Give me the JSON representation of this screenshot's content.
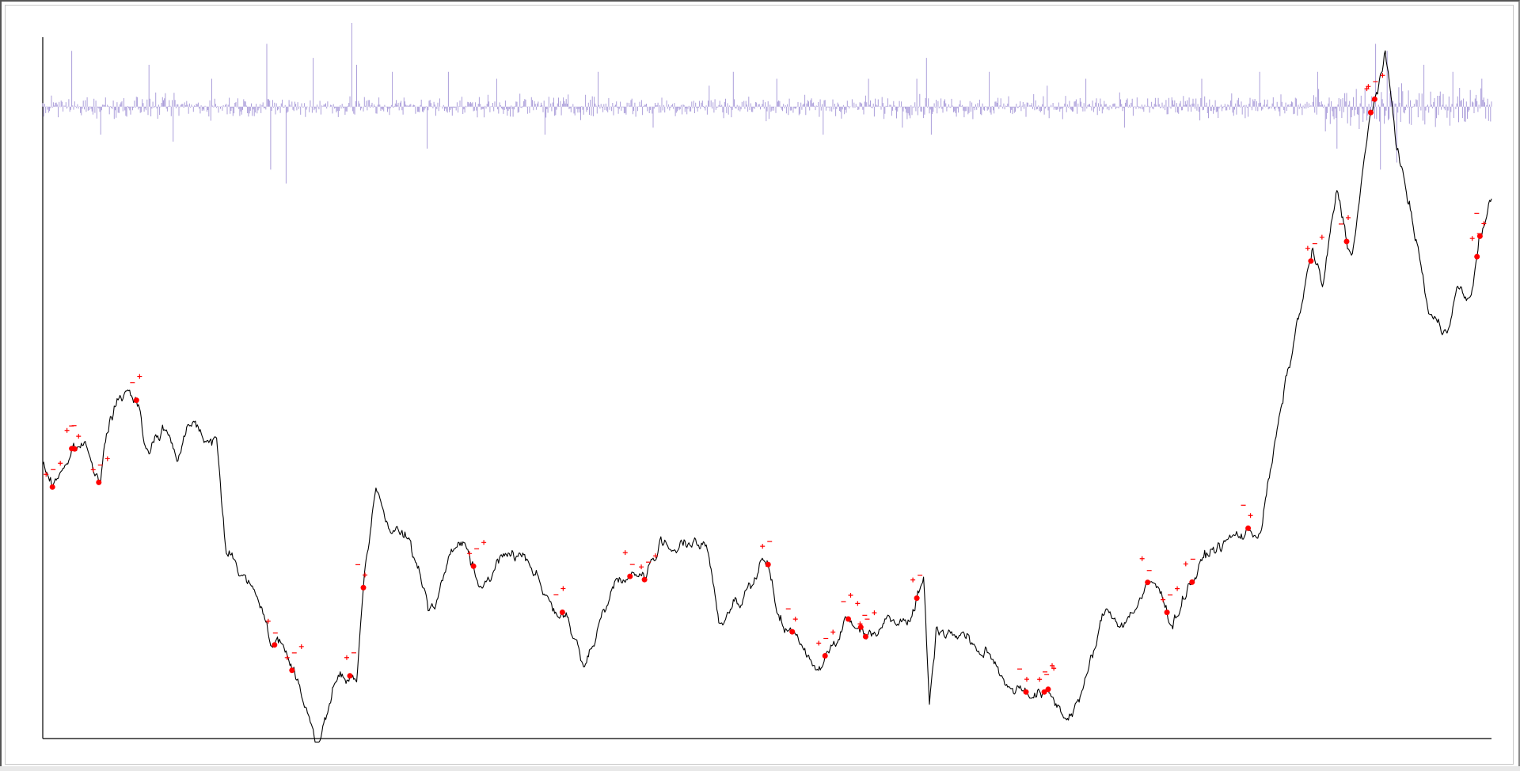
{
  "chart_data": {
    "type": "line",
    "title": "",
    "xlabel": "",
    "ylabel": "",
    "grid": false,
    "legend": "none",
    "x_range": [
      0,
      1500
    ],
    "y_range": [
      0,
      100
    ],
    "series": [
      {
        "role": "price",
        "color": "#000000",
        "anchors": [
          [
            0,
            39
          ],
          [
            10,
            36
          ],
          [
            20,
            39
          ],
          [
            30,
            41
          ],
          [
            45,
            42
          ],
          [
            60,
            38
          ],
          [
            70,
            46
          ],
          [
            80,
            49
          ],
          [
            100,
            48
          ],
          [
            110,
            41
          ],
          [
            125,
            45
          ],
          [
            140,
            41
          ],
          [
            155,
            47
          ],
          [
            165,
            45
          ],
          [
            180,
            42
          ],
          [
            190,
            27
          ],
          [
            210,
            23
          ],
          [
            230,
            17
          ],
          [
            240,
            14
          ],
          [
            260,
            10
          ],
          [
            285,
            0
          ],
          [
            305,
            8
          ],
          [
            325,
            8
          ],
          [
            330,
            18
          ],
          [
            345,
            35
          ],
          [
            360,
            30
          ],
          [
            380,
            28
          ],
          [
            400,
            18
          ],
          [
            420,
            26
          ],
          [
            440,
            28
          ],
          [
            455,
            20
          ],
          [
            470,
            25
          ],
          [
            490,
            27
          ],
          [
            505,
            26
          ],
          [
            525,
            20
          ],
          [
            545,
            16
          ],
          [
            560,
            9
          ],
          [
            575,
            17
          ],
          [
            590,
            22
          ],
          [
            610,
            24
          ],
          [
            620,
            23
          ],
          [
            645,
            28
          ],
          [
            665,
            28
          ],
          [
            690,
            26
          ],
          [
            700,
            16
          ],
          [
            715,
            20
          ],
          [
            735,
            23
          ],
          [
            750,
            25
          ],
          [
            760,
            18
          ],
          [
            790,
            12
          ],
          [
            805,
            11
          ],
          [
            830,
            17
          ],
          [
            850,
            15
          ],
          [
            870,
            17
          ],
          [
            900,
            19
          ],
          [
            912,
            23
          ],
          [
            918,
            5
          ],
          [
            925,
            16
          ],
          [
            950,
            15
          ],
          [
            975,
            12
          ],
          [
            1000,
            8
          ],
          [
            1030,
            7
          ],
          [
            1040,
            6
          ],
          [
            1060,
            3
          ],
          [
            1080,
            8
          ],
          [
            1100,
            18
          ],
          [
            1120,
            17
          ],
          [
            1135,
            20
          ],
          [
            1150,
            22
          ],
          [
            1170,
            17
          ],
          [
            1185,
            22
          ],
          [
            1210,
            27
          ],
          [
            1240,
            29
          ],
          [
            1260,
            30
          ],
          [
            1280,
            45
          ],
          [
            1300,
            60
          ],
          [
            1315,
            70
          ],
          [
            1325,
            64
          ],
          [
            1340,
            78
          ],
          [
            1355,
            69
          ],
          [
            1375,
            89
          ],
          [
            1385,
            95
          ],
          [
            1390,
            97
          ],
          [
            1400,
            87
          ],
          [
            1412,
            78
          ],
          [
            1425,
            69
          ],
          [
            1435,
            61
          ],
          [
            1450,
            58
          ],
          [
            1465,
            65
          ],
          [
            1478,
            62
          ],
          [
            1488,
            72
          ],
          [
            1500,
            77
          ]
        ]
      },
      {
        "role": "returns",
        "color": "#a89ad8",
        "baseline": 90.5,
        "spikes": [
          [
            30,
            8
          ],
          [
            60,
            -4
          ],
          [
            110,
            6
          ],
          [
            135,
            -5
          ],
          [
            175,
            4
          ],
          [
            232,
            9
          ],
          [
            236,
            -9
          ],
          [
            252,
            -11
          ],
          [
            280,
            7
          ],
          [
            320,
            12
          ],
          [
            325,
            6
          ],
          [
            362,
            5
          ],
          [
            398,
            -6
          ],
          [
            420,
            5
          ],
          [
            470,
            4
          ],
          [
            520,
            -4
          ],
          [
            575,
            5
          ],
          [
            632,
            -3
          ],
          [
            690,
            3
          ],
          [
            715,
            5
          ],
          [
            760,
            4
          ],
          [
            808,
            -4
          ],
          [
            855,
            4
          ],
          [
            890,
            -3
          ],
          [
            905,
            4
          ],
          [
            915,
            7
          ],
          [
            920,
            -4
          ],
          [
            980,
            5
          ],
          [
            1040,
            3
          ],
          [
            1080,
            4
          ],
          [
            1120,
            -3
          ],
          [
            1200,
            4
          ],
          [
            1260,
            5
          ],
          [
            1320,
            5
          ],
          [
            1340,
            -6
          ],
          [
            1380,
            9
          ],
          [
            1385,
            -9
          ],
          [
            1392,
            8
          ],
          [
            1402,
            -8
          ],
          [
            1430,
            6
          ],
          [
            1460,
            5
          ],
          [
            1490,
            4
          ]
        ]
      }
    ],
    "markers": [
      {
        "type": "point",
        "color": "#ff0000",
        "x": [
          10,
          30,
          33,
          58,
          97,
          240,
          258,
          318,
          332,
          446,
          538,
          608,
          623,
          751,
          776,
          810,
          834,
          847,
          852,
          905,
          1018,
          1037,
          1041,
          1144,
          1164,
          1190,
          1248,
          1313,
          1350,
          1375,
          1379,
          1485,
          1488
        ]
      },
      {
        "type": "plus-sign",
        "color": "#ff0000",
        "count": 62
      },
      {
        "type": "minus-sign",
        "color": "#ff0000",
        "count": 58
      }
    ]
  }
}
